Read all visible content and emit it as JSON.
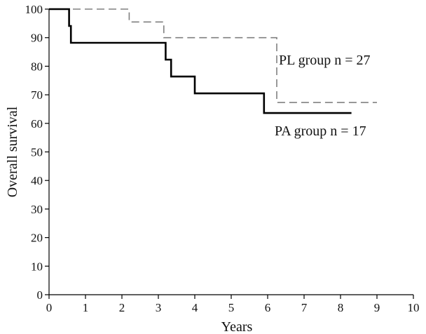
{
  "chart_data": {
    "type": "line",
    "title": "",
    "xlabel": "Years",
    "ylabel": "Overall survival",
    "xlim": [
      0,
      10
    ],
    "ylim": [
      0,
      100
    ],
    "x_ticks": [
      0,
      1,
      2,
      3,
      4,
      5,
      6,
      7,
      8,
      9,
      10
    ],
    "y_ticks": [
      0,
      10,
      20,
      30,
      40,
      50,
      60,
      70,
      80,
      90,
      100
    ],
    "grid": false,
    "step": true,
    "series": [
      {
        "name": "PL group n = 27",
        "style": "dashed",
        "color": "#808080",
        "x": [
          0,
          2.2,
          2.2,
          3.15,
          3.15,
          6.25,
          6.25,
          9.0
        ],
        "y": [
          100,
          100,
          95.5,
          95.5,
          90,
          90,
          67.3,
          67.3
        ]
      },
      {
        "name": "PA group n = 17",
        "style": "solid",
        "color": "#000000",
        "x": [
          0,
          0.55,
          0.55,
          0.6,
          0.6,
          3.2,
          3.2,
          3.35,
          3.35,
          4.0,
          4.0,
          5.9,
          5.9,
          8.3
        ],
        "y": [
          100,
          100,
          94.1,
          94.1,
          88.2,
          88.2,
          82.3,
          82.3,
          76.4,
          76.4,
          70.5,
          70.5,
          63.6,
          63.6
        ]
      }
    ]
  }
}
